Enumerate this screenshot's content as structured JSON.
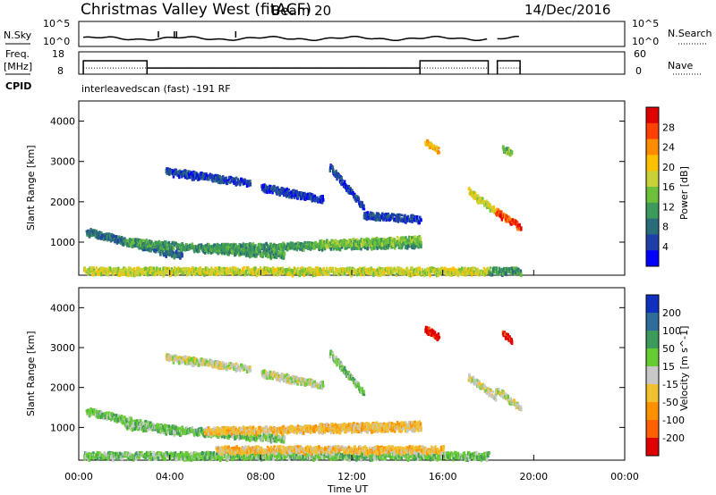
{
  "header": {
    "station": "Christmas Valley West (fitACF)",
    "beam": "Beam 20",
    "date": "14/Dec/2016"
  },
  "left_labels": {
    "nsky": "N.Sky",
    "freq_line1": "Freq.",
    "freq_line2": "[MHz]",
    "cpid": "CPID"
  },
  "right_labels": {
    "nsearch": "N.Search",
    "nave": "Nave"
  },
  "scan_label": "interleavedscan (fast) -191 RF",
  "chart_data": [
    {
      "type": "line",
      "panel": "noise",
      "left_ticks": [
        "10^5",
        "10^0"
      ],
      "right_ticks": [
        "10^5",
        "10^0"
      ],
      "series": [
        {
          "values_x_hours": [
            0.2,
            18.0
          ],
          "style": "solid"
        },
        {
          "values_x_hours": [
            18.4,
            19.4
          ],
          "style": "solid"
        }
      ],
      "spikes_hours": [
        3.5,
        4.2,
        4.3,
        6.9
      ]
    },
    {
      "type": "line",
      "panel": "frequency",
      "left_ticks": [
        "18",
        "8"
      ],
      "right_ticks": [
        "60",
        "0"
      ],
      "freq_steps": [
        {
          "x": [
            0.2,
            3.0
          ],
          "mhz": 14.5
        },
        {
          "x": [
            3.0,
            15.0
          ],
          "mhz": 11.0
        },
        {
          "x": [
            15.0,
            18.0
          ],
          "mhz": 14.5
        },
        {
          "x": [
            18.4,
            19.4
          ],
          "mhz": 14.5
        }
      ],
      "nave_level": 18
    },
    {
      "type": "heatmap",
      "panel": "power",
      "ylabel": "Slant Range [km]",
      "yticks": [
        "1000",
        "2000",
        "3000",
        "4000"
      ],
      "ylim": [
        180,
        4500
      ],
      "colorbar_label": "Power [dB]",
      "colorbar_ticks": [
        "4",
        "8",
        "12",
        "16",
        "20",
        "24",
        "28"
      ],
      "colors": [
        "#0000ff",
        "#1f3fa8",
        "#2b6c7a",
        "#3d9a5a",
        "#6cc03c",
        "#c8d238",
        "#ffc000",
        "#ff8c00",
        "#ff4000",
        "#e00000"
      ],
      "regions": [
        {
          "x": [
            0.3,
            4.5
          ],
          "y": [
            1300,
            700
          ],
          "level": 2
        },
        {
          "x": [
            2.0,
            9.0
          ],
          "y": [
            1050,
            720
          ],
          "level": 3
        },
        {
          "x": [
            5.5,
            15.0
          ],
          "y": [
            900,
            1000
          ],
          "level": 3
        },
        {
          "x": [
            10.5,
            15.0
          ],
          "y": [
            1000,
            1100
          ],
          "level": 4
        },
        {
          "x": [
            3.8,
            7.5
          ],
          "y": [
            2800,
            2500
          ],
          "level": 1
        },
        {
          "x": [
            8.0,
            10.7
          ],
          "y": [
            2400,
            2100
          ],
          "level": 1
        },
        {
          "x": [
            11.0,
            12.5
          ],
          "y": [
            2900,
            1900
          ],
          "level": 1
        },
        {
          "x": [
            12.5,
            15.0
          ],
          "y": [
            1700,
            1600
          ],
          "level": 1
        },
        {
          "x": [
            15.2,
            15.8
          ],
          "y": [
            3500,
            3300
          ],
          "level": 6
        },
        {
          "x": [
            17.1,
            18.3
          ],
          "y": [
            2300,
            1800
          ],
          "level": 5
        },
        {
          "x": [
            18.3,
            19.4
          ],
          "y": [
            1800,
            1400
          ],
          "level": 8
        },
        {
          "x": [
            18.6,
            19.0
          ],
          "y": [
            3400,
            3200
          ],
          "level": 4
        },
        {
          "x": [
            0.2,
            18.0
          ],
          "y": [
            320,
            320
          ],
          "level": 5
        },
        {
          "x": [
            18.0,
            19.4
          ],
          "y": [
            320,
            320
          ],
          "level": 3
        }
      ]
    },
    {
      "type": "heatmap",
      "panel": "velocity",
      "ylabel": "Slant Range [km]",
      "xlabel": "Time UT",
      "xticks": [
        "00:00",
        "04:00",
        "08:00",
        "12:00",
        "16:00",
        "20:00",
        "00:00"
      ],
      "yticks": [
        "1000",
        "2000",
        "3000",
        "4000"
      ],
      "ylim": [
        180,
        4500
      ],
      "colorbar_label": "Velocity [m s^-1]",
      "colorbar_ticks": [
        "200",
        "100",
        "50",
        "15",
        "-15",
        "-50",
        "-100",
        "-200"
      ],
      "colors": [
        "#1030c0",
        "#2e6c9a",
        "#3d9a5a",
        "#66cc33",
        "#c8c8c8",
        "#f0c030",
        "#ff9000",
        "#ff6000",
        "#e00000"
      ],
      "regions": [
        {
          "x": [
            0.3,
            4.5
          ],
          "y": [
            1450,
            900
          ],
          "level": 3
        },
        {
          "x": [
            2.0,
            9.0
          ],
          "y": [
            1100,
            750
          ],
          "level": 3
        },
        {
          "x": [
            5.5,
            15.0
          ],
          "y": [
            950,
            1050
          ],
          "level": 5
        },
        {
          "x": [
            10.5,
            15.0
          ],
          "y": [
            1050,
            1100
          ],
          "level": 5
        },
        {
          "x": [
            3.8,
            7.5
          ],
          "y": [
            2800,
            2500
          ],
          "level": 4
        },
        {
          "x": [
            8.0,
            10.7
          ],
          "y": [
            2400,
            2100
          ],
          "level": 4
        },
        {
          "x": [
            11.0,
            12.5
          ],
          "y": [
            2900,
            1900
          ],
          "level": 3
        },
        {
          "x": [
            15.2,
            15.8
          ],
          "y": [
            3500,
            3300
          ],
          "level": 8
        },
        {
          "x": [
            17.1,
            18.3
          ],
          "y": [
            2300,
            1800
          ],
          "level": 4
        },
        {
          "x": [
            18.3,
            19.4
          ],
          "y": [
            2000,
            1500
          ],
          "level": 4
        },
        {
          "x": [
            18.6,
            19.0
          ],
          "y": [
            3400,
            3200
          ],
          "level": 8
        },
        {
          "x": [
            0.2,
            18.0
          ],
          "y": [
            330,
            330
          ],
          "level": 3
        },
        {
          "x": [
            6.0,
            16.0
          ],
          "y": [
            480,
            480
          ],
          "level": 5
        }
      ]
    }
  ]
}
